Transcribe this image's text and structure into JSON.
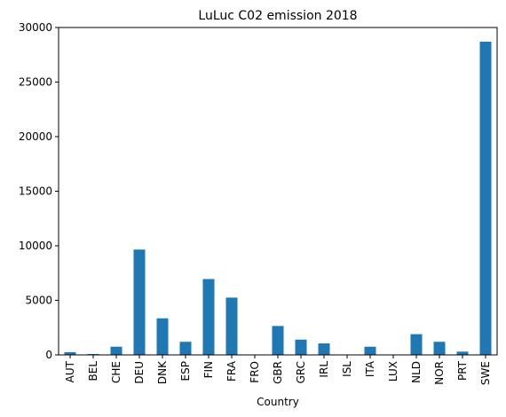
{
  "chart_data": {
    "type": "bar",
    "title": "LuLuc C02 emission 2018",
    "xlabel": "Country",
    "ylabel": "",
    "ylim": [
      0,
      30000
    ],
    "yticks": [
      0,
      5000,
      10000,
      15000,
      20000,
      25000,
      30000
    ],
    "categories": [
      "AUT",
      "BEL",
      "CHE",
      "DEU",
      "DNK",
      "ESP",
      "FIN",
      "FRA",
      "FRO",
      "GBR",
      "GRC",
      "IRL",
      "ISL",
      "ITA",
      "LUX",
      "NLD",
      "NOR",
      "PRT",
      "SWE"
    ],
    "values": [
      250,
      80,
      750,
      9650,
      3350,
      1200,
      6950,
      5250,
      0,
      2650,
      1400,
      1050,
      0,
      750,
      0,
      1900,
      1200,
      300,
      28700
    ],
    "bar_color": "#1f77b4",
    "grid": false,
    "legend": "none"
  }
}
